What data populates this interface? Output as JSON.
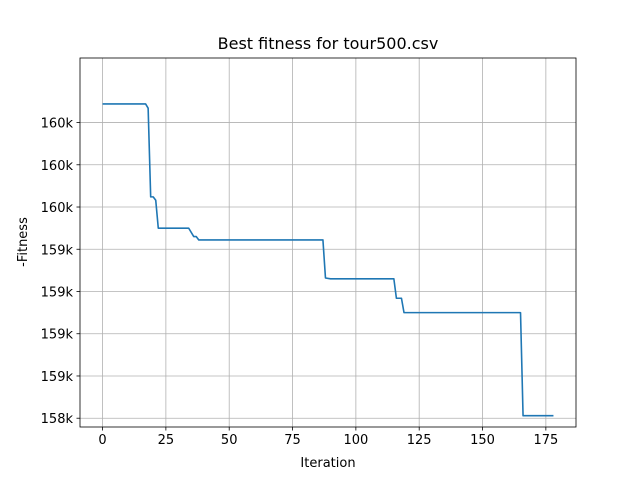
{
  "chart_data": {
    "type": "line",
    "title": "Best fitness for tour500.csv",
    "xlabel": "Iteration",
    "ylabel": "-Fitness",
    "xlim": [
      -8.9,
      186.9
    ],
    "ylim": [
      157948,
      160132
    ],
    "grid": true,
    "x_ticks": [
      0,
      25,
      50,
      75,
      100,
      125,
      150,
      175
    ],
    "y_ticks": [
      {
        "value": 158000,
        "label": "158k"
      },
      {
        "value": 158250,
        "label": "159k"
      },
      {
        "value": 158500,
        "label": "159k"
      },
      {
        "value": 158750,
        "label": "159k"
      },
      {
        "value": 159000,
        "label": "159k"
      },
      {
        "value": 159250,
        "label": "160k"
      },
      {
        "value": 159500,
        "label": "160k"
      },
      {
        "value": 159750,
        "label": "160k"
      }
    ],
    "series": [
      {
        "color": "#1f77b4",
        "x": [
          0,
          17,
          18,
          19,
          20,
          21,
          22,
          34,
          36,
          37,
          38,
          87,
          88,
          90,
          115,
          116,
          118,
          119,
          165,
          166,
          178
        ],
        "y": [
          159860,
          159860,
          159835,
          159310,
          159310,
          159290,
          159125,
          159125,
          159075,
          159075,
          159055,
          159055,
          158830,
          158825,
          158825,
          158710,
          158710,
          158625,
          158625,
          158015,
          158015
        ]
      }
    ]
  }
}
